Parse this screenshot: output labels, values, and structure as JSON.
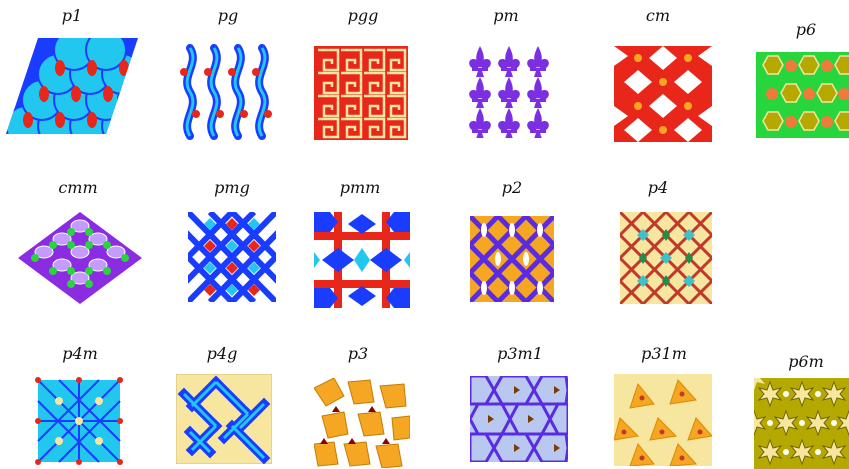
{
  "groups": [
    {
      "name": "p1"
    },
    {
      "name": "pg"
    },
    {
      "name": "pgg"
    },
    {
      "name": "pm"
    },
    {
      "name": "cm"
    },
    {
      "name": "p6"
    },
    {
      "name": "cmm"
    },
    {
      "name": "pmg"
    },
    {
      "name": "pmm"
    },
    {
      "name": "p2"
    },
    {
      "name": "p4"
    },
    {
      "name": "p4m"
    },
    {
      "name": "p4g"
    },
    {
      "name": "p3"
    },
    {
      "name": "p3m1"
    },
    {
      "name": "p31m"
    },
    {
      "name": "p6m"
    }
  ],
  "colors": {
    "blue": "#1a3cff",
    "cyan": "#22c7f0",
    "red": "#e8261a",
    "orange": "#f5a623",
    "green": "#27d63c",
    "purple": "#8b2be2",
    "olive": "#b5a800",
    "yellow": "#f7e6a0"
  }
}
